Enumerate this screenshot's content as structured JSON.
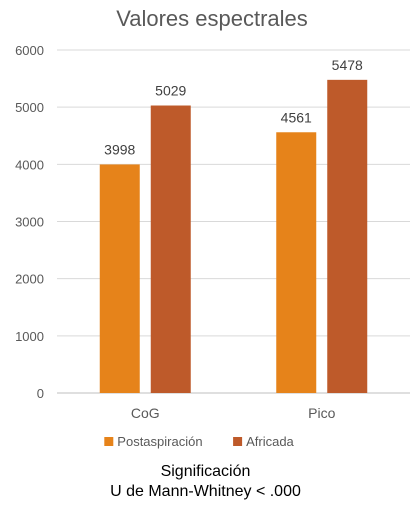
{
  "chart_data": {
    "type": "bar",
    "title": "Valores espectrales",
    "categories": [
      "CoG",
      "Pico"
    ],
    "series": [
      {
        "name": "Postaspiración",
        "color": "#E6831A",
        "values": [
          3998,
          4561
        ]
      },
      {
        "name": "Africada",
        "color": "#BE5A2A",
        "values": [
          5029,
          5478
        ]
      }
    ],
    "ylim": [
      0,
      6000
    ],
    "yticks": [
      0,
      1000,
      2000,
      3000,
      4000,
      5000,
      6000
    ],
    "grid": true,
    "legend": "bottom",
    "data_labels": true
  },
  "notes": {
    "line1": "Significación",
    "line2": "U de Mann-Whitney < .000"
  }
}
